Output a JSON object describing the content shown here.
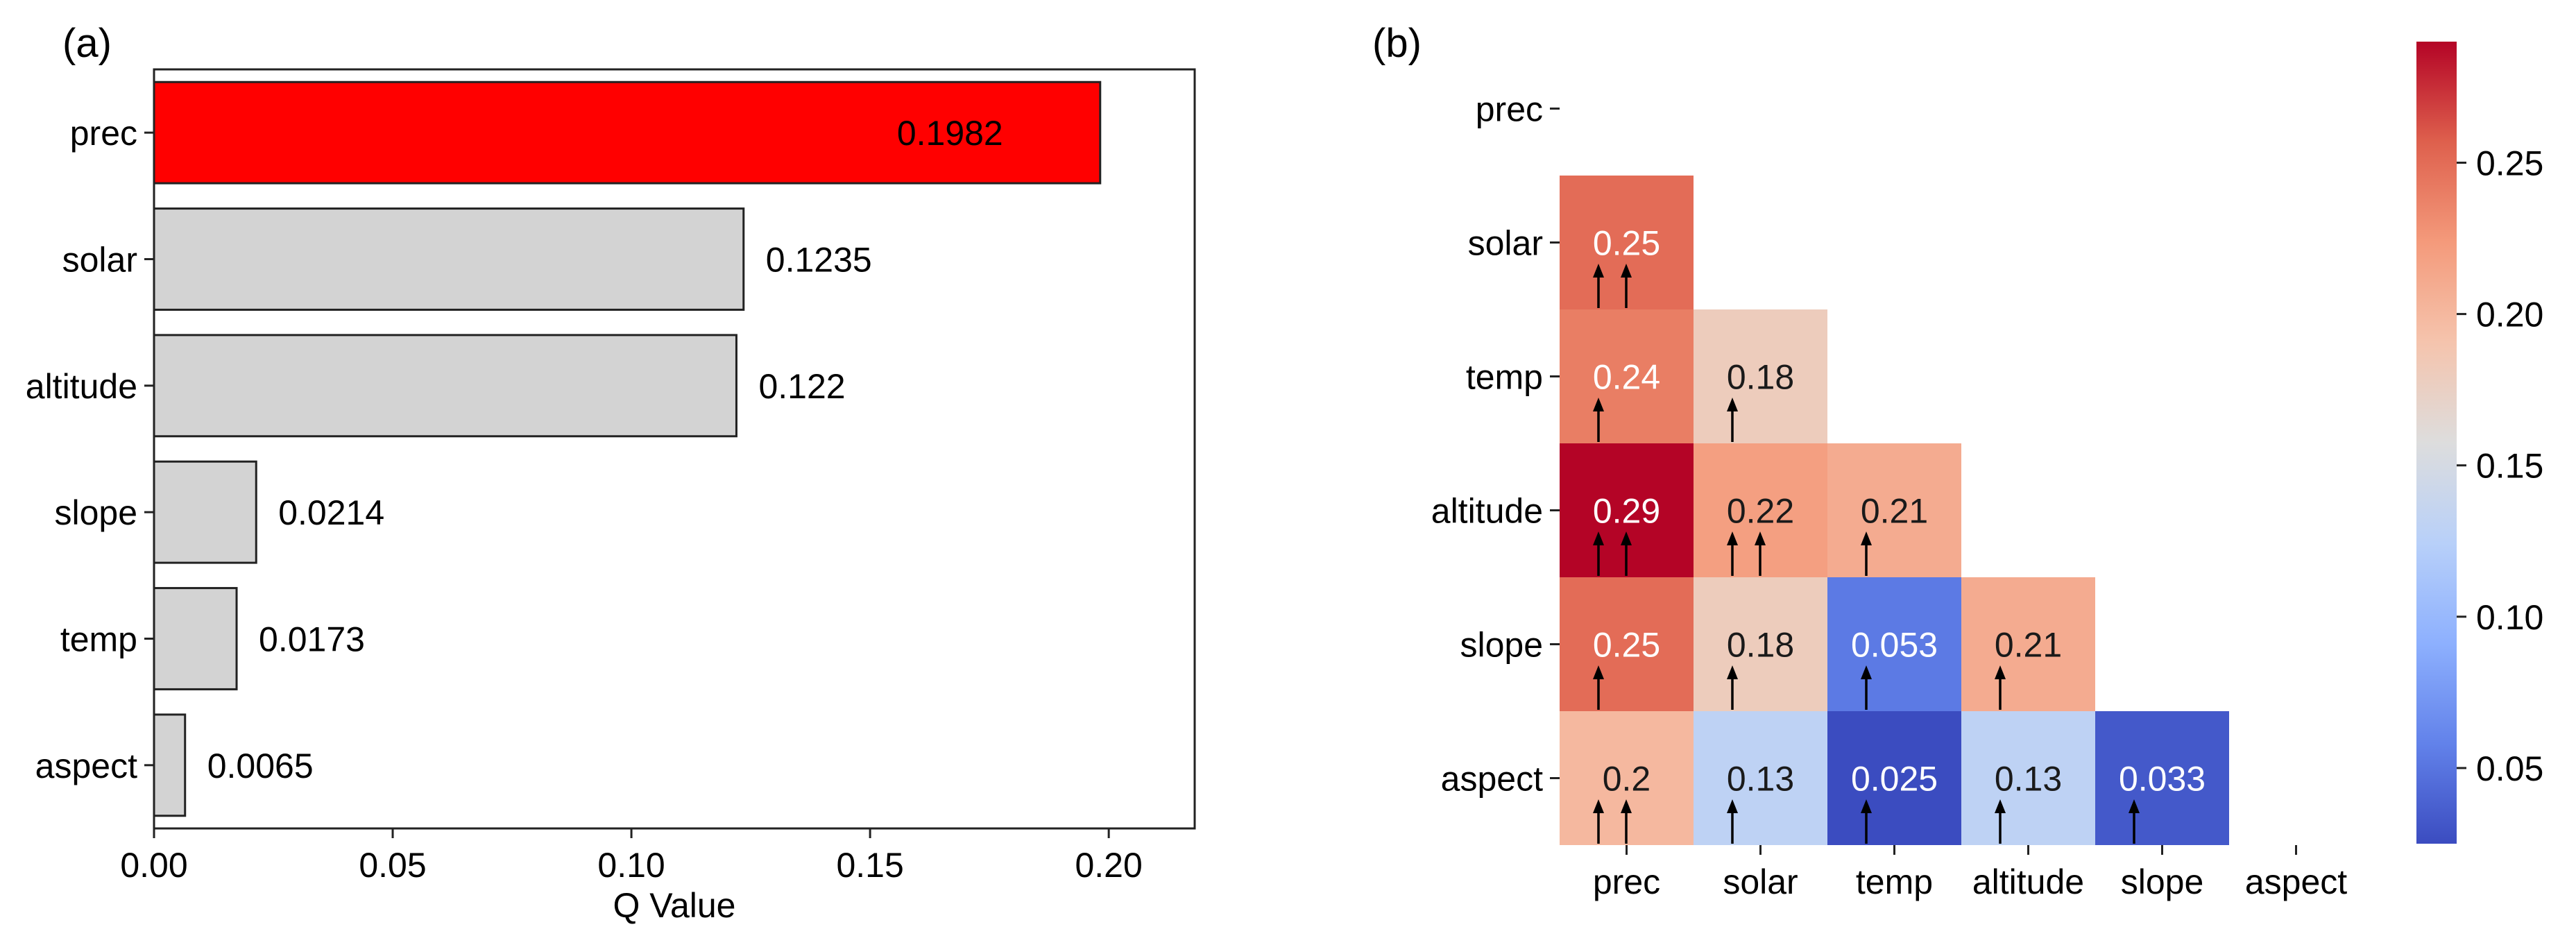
{
  "chart_data": [
    {
      "panel": "(a)",
      "type": "bar",
      "orientation": "horizontal",
      "categories": [
        "prec",
        "solar",
        "altitude",
        "slope",
        "temp",
        "aspect"
      ],
      "values": [
        0.1982,
        0.1235,
        0.122,
        0.0214,
        0.0173,
        0.0065
      ],
      "value_labels": [
        "0.1982",
        "0.1235",
        "0.122",
        "0.0214",
        "0.0173",
        "0.0065"
      ],
      "xlabel": "Q Value",
      "ylabel": "",
      "xlim": [
        0,
        0.218
      ],
      "xticks": [
        0.0,
        0.05,
        0.1,
        0.15,
        0.2
      ],
      "xtick_labels": [
        "0.00",
        "0.05",
        "0.10",
        "0.15",
        "0.20"
      ],
      "highlight_category": "prec",
      "colors": {
        "highlight": "#ff0000",
        "default": "#d3d3d3",
        "edge": "#222222"
      }
    },
    {
      "panel": "(b)",
      "type": "heatmap",
      "layout": "lower-triangle",
      "rows": [
        "prec",
        "solar",
        "temp",
        "altitude",
        "slope",
        "aspect"
      ],
      "columns": [
        "prec",
        "solar",
        "temp",
        "altitude",
        "slope",
        "aspect"
      ],
      "values": [
        [
          null,
          null,
          null,
          null,
          null,
          null
        ],
        [
          0.25,
          null,
          null,
          null,
          null,
          null
        ],
        [
          0.24,
          0.18,
          null,
          null,
          null,
          null
        ],
        [
          0.29,
          0.22,
          0.21,
          null,
          null,
          null
        ],
        [
          0.25,
          0.18,
          0.053,
          0.21,
          null,
          null
        ],
        [
          0.2,
          0.13,
          0.025,
          0.13,
          0.033,
          null
        ]
      ],
      "value_labels": [
        [
          null,
          null,
          null,
          null,
          null,
          null
        ],
        [
          "0.25",
          null,
          null,
          null,
          null,
          null
        ],
        [
          "0.24",
          "0.18",
          null,
          null,
          null,
          null
        ],
        [
          "0.29",
          "0.22",
          "0.21",
          null,
          null,
          null
        ],
        [
          "0.25",
          "0.18",
          "0.053",
          "0.21",
          null,
          null
        ],
        [
          "0.2",
          "0.13",
          "0.025",
          "0.13",
          "0.033",
          null
        ]
      ],
      "arrows": [
        [
          0,
          0,
          0,
          0,
          0,
          0
        ],
        [
          2,
          0,
          0,
          0,
          0,
          0
        ],
        [
          1,
          1,
          0,
          0,
          0,
          0
        ],
        [
          2,
          2,
          1,
          0,
          0,
          0
        ],
        [
          1,
          1,
          1,
          1,
          0,
          0
        ],
        [
          2,
          1,
          1,
          1,
          1,
          0
        ]
      ],
      "colormap": "coolwarm",
      "vmin": 0.025,
      "vmax": 0.29,
      "colorbar_ticks": [
        0.05,
        0.1,
        0.15,
        0.2,
        0.25
      ],
      "colorbar_tick_labels": [
        "0.05",
        "0.10",
        "0.15",
        "0.20",
        "0.25"
      ],
      "light_text_threshold": {
        "low": 0.06,
        "high": 0.235
      }
    }
  ]
}
